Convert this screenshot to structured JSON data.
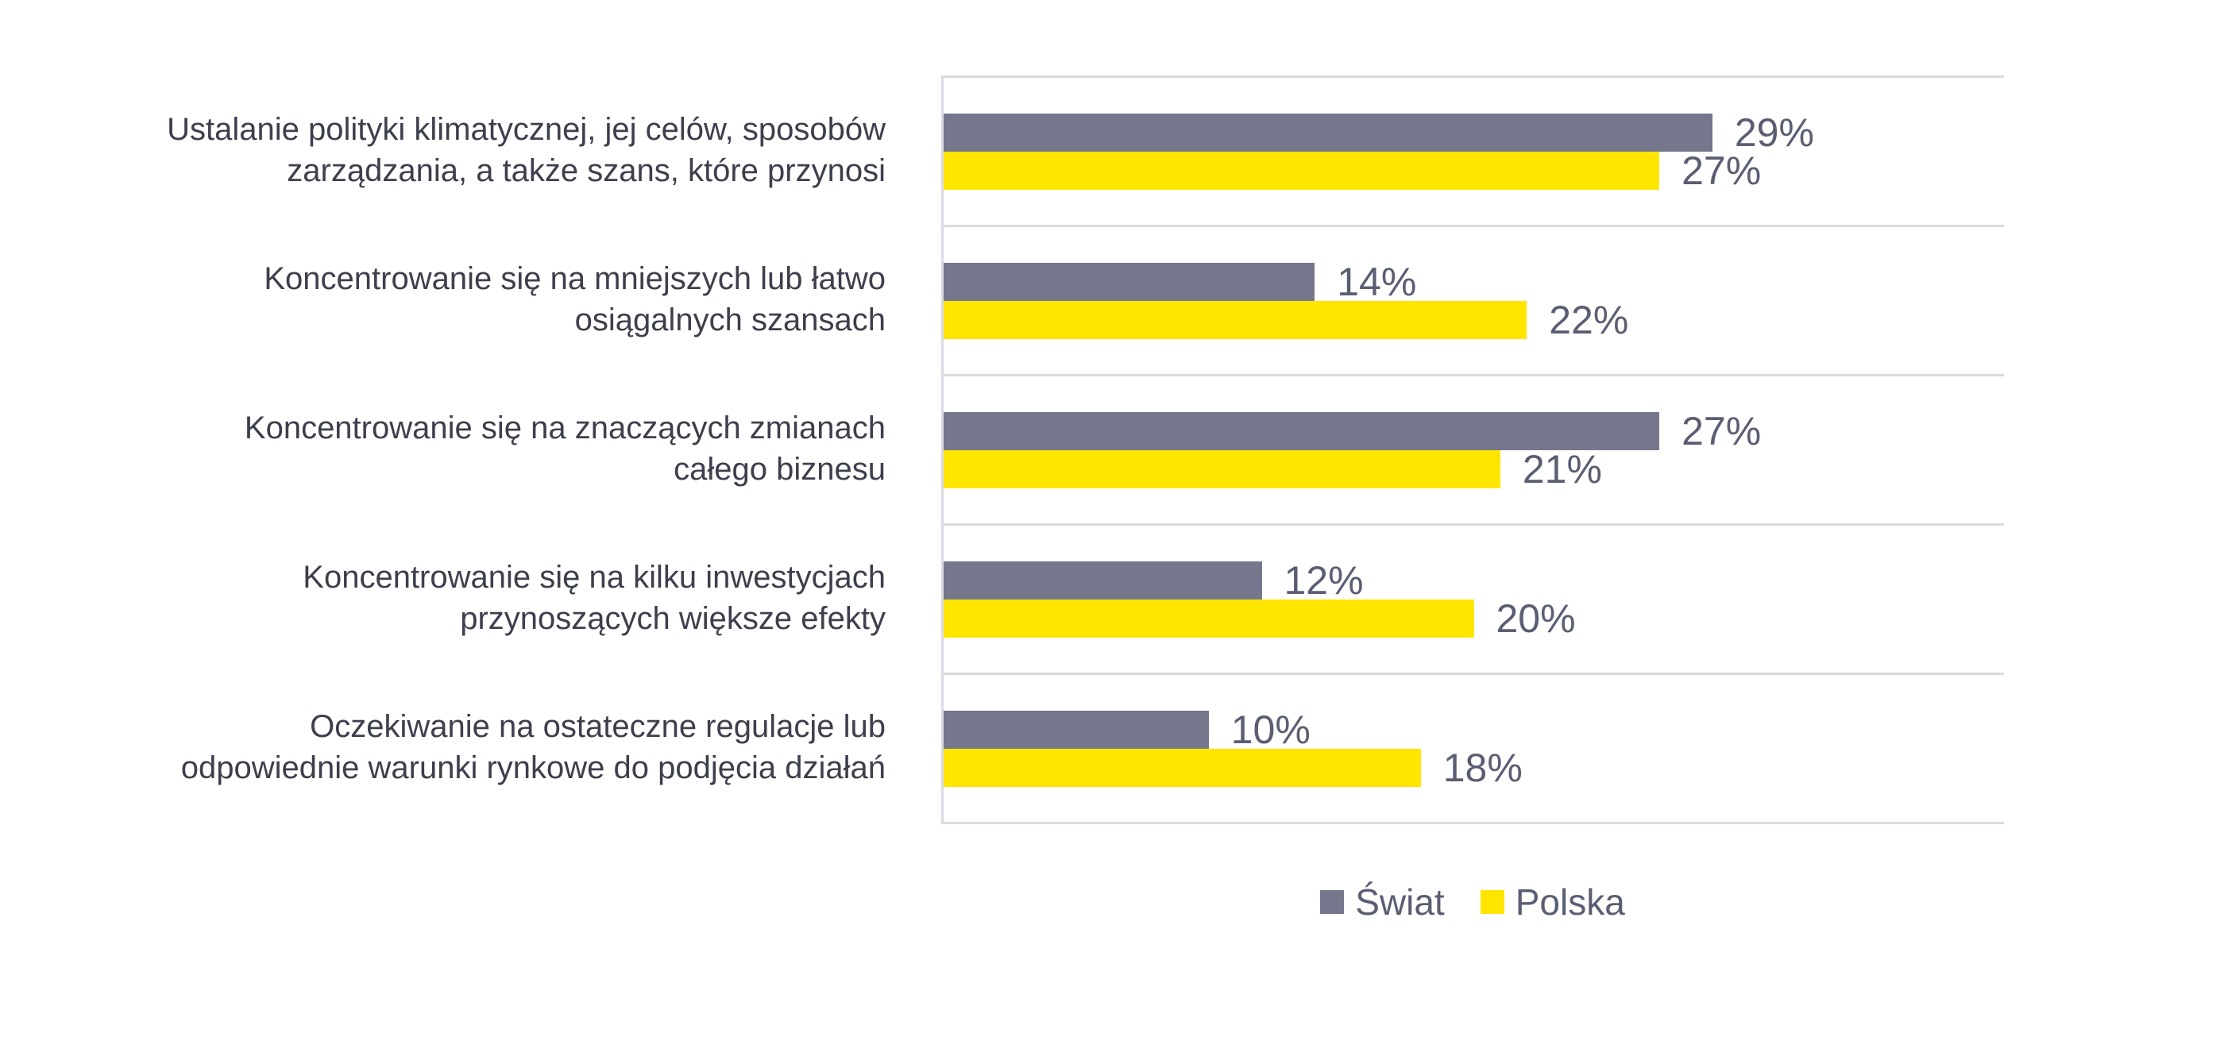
{
  "colors": {
    "background": "#ffffff",
    "swiat_bar": "#75788c",
    "polska_bar": "#ffe600",
    "category_label_text": "#3d3f4d",
    "value_label_text": "#5b5e73",
    "gridline": "#dadae3"
  },
  "legend": {
    "items": [
      {
        "label": "Świat",
        "color": "#75788c"
      },
      {
        "label": "Polska",
        "color": "#ffe600"
      }
    ],
    "position": "bottom-center"
  },
  "chart_data": {
    "type": "bar",
    "orientation": "horizontal",
    "title": "",
    "xlabel": "",
    "ylabel": "",
    "xlim": [
      0,
      40
    ],
    "grid": "horizontal row separators + left axis line, no tick labels",
    "legend_position": "bottom",
    "value_suffix": "%",
    "categories": [
      "Ustalanie polityki klimatycznej, jej celów, sposobów zarządzania, a także szans, które przynosi",
      "Koncentrowanie się na mniejszych lub łatwo osiągalnych szansach",
      "Koncentrowanie się na znaczących zmianach całego biznesu",
      "Koncentrowanie się na kilku inwestycjach przynoszących większe efekty",
      "Oczekiwanie na ostateczne regulacje lub odpowiednie warunki rynkowe do podjęcia działań"
    ],
    "category_lines": [
      [
        "Ustalanie polityki klimatycznej, jej celów, sposobów",
        "zarządzania, a także szans, które przynosi"
      ],
      [
        "Koncentrowanie się na mniejszych lub łatwo",
        "osiągalnych szansach"
      ],
      [
        "Koncentrowanie się na znaczących zmianach",
        "całego biznesu"
      ],
      [
        "Koncentrowanie się na kilku inwestycjach",
        "przynoszących większe efekty"
      ],
      [
        "Oczekiwanie na ostateczne regulacje lub",
        "odpowiednie warunki rynkowe do podjęcia działań"
      ]
    ],
    "series": [
      {
        "name": "Świat",
        "color": "#75788c",
        "values": [
          29,
          14,
          27,
          12,
          10
        ]
      },
      {
        "name": "Polska",
        "color": "#ffe600",
        "values": [
          27,
          22,
          21,
          20,
          18
        ]
      }
    ]
  }
}
